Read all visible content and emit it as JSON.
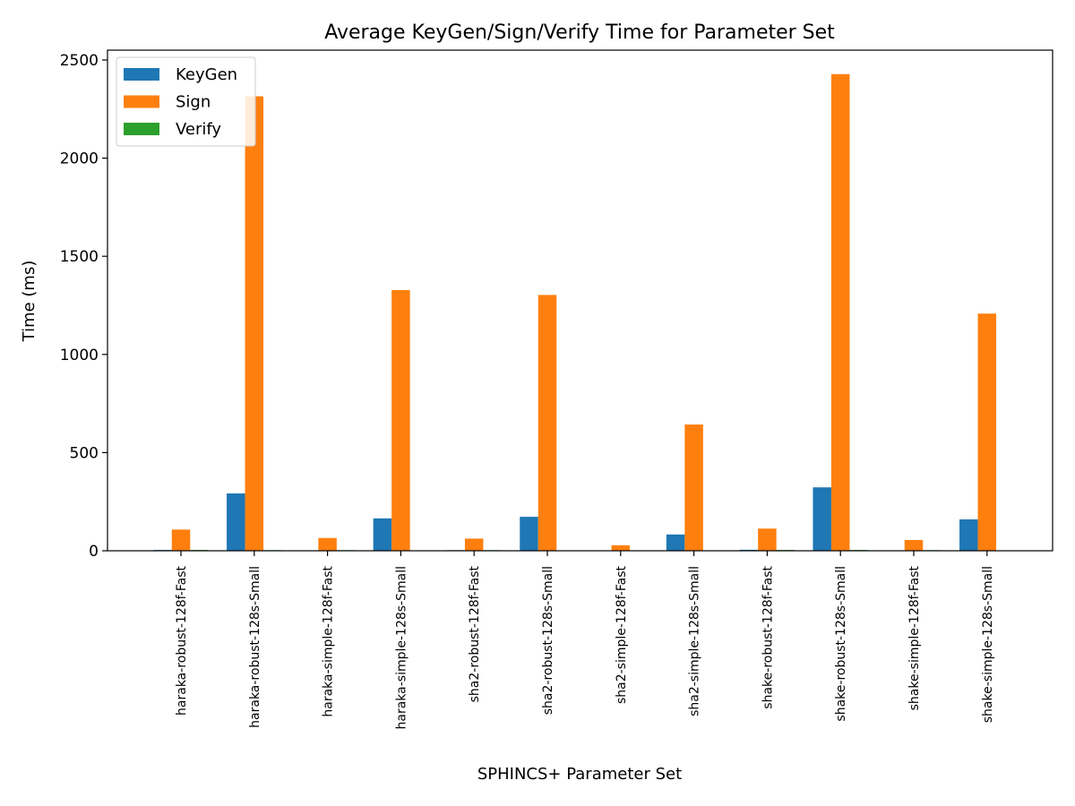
{
  "chart_data": {
    "type": "bar",
    "title": "Average KeyGen/Sign/Verify Time for Parameter Set",
    "xlabel": "SPHINCS+ Parameter Set",
    "ylabel": "Time (ms)",
    "ylim": [
      0,
      2550
    ],
    "yticks": [
      0,
      500,
      1000,
      1500,
      2000,
      2500
    ],
    "grid": false,
    "legend_position": "top-left",
    "categories": [
      "haraka-robust-128f-Fast",
      "haraka-robust-128s-Small",
      "haraka-simple-128f-Fast",
      "haraka-simple-128s-Small",
      "sha2-robust-128f-Fast",
      "sha2-robust-128s-Small",
      "sha2-simple-128f-Fast",
      "sha2-simple-128s-Small",
      "shake-robust-128f-Fast",
      "shake-robust-128s-Small",
      "shake-simple-128f-Fast",
      "shake-simple-128s-Small"
    ],
    "series": [
      {
        "name": "KeyGen",
        "color": "#1f77b4",
        "values": [
          4,
          292,
          2,
          165,
          3,
          173,
          1,
          83,
          5,
          323,
          2,
          160
        ]
      },
      {
        "name": "Sign",
        "color": "#ff7f0e",
        "values": [
          108,
          2315,
          65,
          1328,
          62,
          1303,
          28,
          643,
          113,
          2428,
          55,
          1208
        ]
      },
      {
        "name": "Verify",
        "color": "#2ca02c",
        "values": [
          4,
          3,
          3,
          2,
          3,
          2,
          2,
          1,
          4,
          4,
          3,
          2
        ]
      }
    ]
  }
}
